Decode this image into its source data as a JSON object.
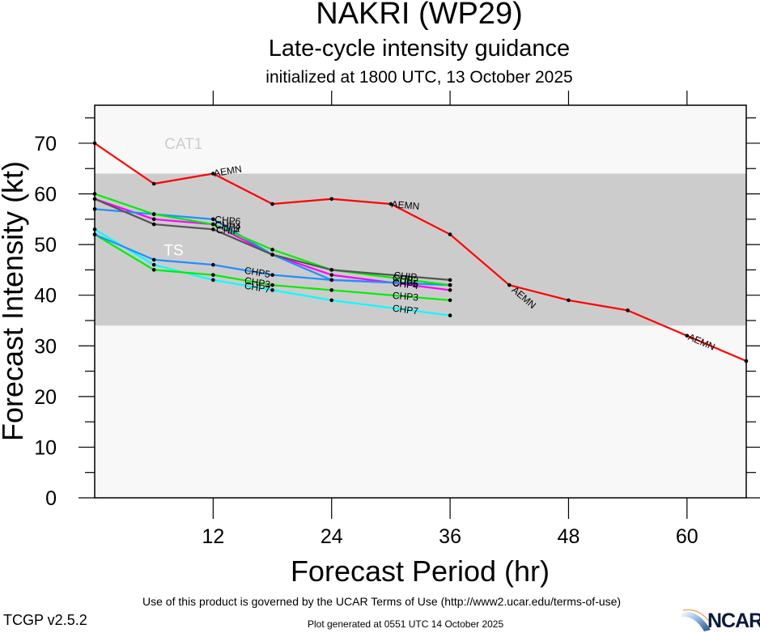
{
  "header": {
    "title": "NAKRI (WP29)",
    "subtitle": "Late-cycle intensity guidance",
    "init_line": "initialized at 1800 UTC, 13 October 2025"
  },
  "footer": {
    "terms": "Use of this product is governed by the UCAR Terms of Use (http://www2.ucar.edu/terms-of-use)",
    "version": "TCGP v2.5.2",
    "generated": "Plot generated at 0551 UTC   14 October 2025",
    "logo_text": "NCAR"
  },
  "chart_data": {
    "type": "line",
    "title": "NAKRI (WP29)",
    "subtitle": "Late-cycle intensity guidance",
    "xlabel": "Forecast Period (hr)",
    "ylabel": "Forecast Intensity (kt)",
    "xlim": [
      0,
      66
    ],
    "ylim": [
      0,
      77.5
    ],
    "xticks": [
      12,
      24,
      36,
      48,
      60
    ],
    "yticks": [
      0,
      10,
      20,
      30,
      40,
      50,
      60,
      70
    ],
    "yminor_step": 5,
    "xminor_step": 12,
    "grid": false,
    "legend": "inline labels",
    "background_color": "#f8f8f8",
    "bands": [
      {
        "name": "TS",
        "ymin": 34,
        "ymax": 64,
        "color": "#cccccc",
        "label_color": "#ffffff",
        "label_x": 8,
        "label_y": 49
      },
      {
        "name": "CAT1",
        "ymin": 64,
        "ymax": 83,
        "color": "#f8f8f8",
        "label_color": "#cccccc",
        "label_x": 9,
        "label_y": 70
      }
    ],
    "series": [
      {
        "name": "AEMN",
        "color": "#ff0000",
        "x": [
          0,
          6,
          12,
          18,
          24,
          30,
          36,
          42,
          48,
          54,
          60,
          66
        ],
        "values": [
          70,
          62,
          64,
          58,
          59,
          58,
          52,
          42,
          39,
          37,
          32,
          27
        ],
        "label_at": [
          12,
          30,
          42,
          60
        ]
      },
      {
        "name": "CHIP",
        "color": "#555555",
        "x": [
          0,
          6,
          12,
          18,
          24,
          36
        ],
        "values": [
          59,
          54,
          53,
          48,
          45,
          43
        ],
        "label_at": [
          12,
          30
        ]
      },
      {
        "name": "CHP2",
        "color": "#00ee00",
        "x": [
          0,
          6,
          12,
          18,
          24,
          36
        ],
        "values": [
          60,
          56,
          54,
          49,
          45,
          42
        ],
        "label_at": [
          12,
          30
        ]
      },
      {
        "name": "CHP6",
        "color": "#1e90ff",
        "x": [
          0,
          6,
          12,
          18,
          24,
          36
        ],
        "values": [
          57,
          56,
          55,
          48,
          43,
          42
        ],
        "label_at": [
          12,
          30
        ]
      },
      {
        "name": "CHP4",
        "color": "#ff00ff",
        "x": [
          0,
          6,
          12,
          18,
          24,
          36
        ],
        "values": [
          59,
          55,
          54,
          48,
          44,
          41
        ],
        "label_at": [
          12,
          30
        ]
      },
      {
        "name": "CHP5",
        "color": "#1e90ff",
        "x": [
          0,
          6,
          12,
          18,
          24,
          36
        ],
        "values": [
          52,
          47,
          46,
          44,
          43,
          42
        ],
        "label_at": [
          15,
          30
        ]
      },
      {
        "name": "CHP3",
        "color": "#00ee00",
        "x": [
          0,
          6,
          12,
          18,
          24,
          36
        ],
        "values": [
          52,
          45,
          44,
          42,
          41,
          39
        ],
        "label_at": [
          15,
          30
        ]
      },
      {
        "name": "CHP7",
        "color": "#00ffff",
        "x": [
          0,
          6,
          12,
          18,
          24,
          36
        ],
        "values": [
          53,
          46,
          43,
          41,
          39,
          36
        ],
        "label_at": [
          15,
          30
        ]
      }
    ]
  }
}
